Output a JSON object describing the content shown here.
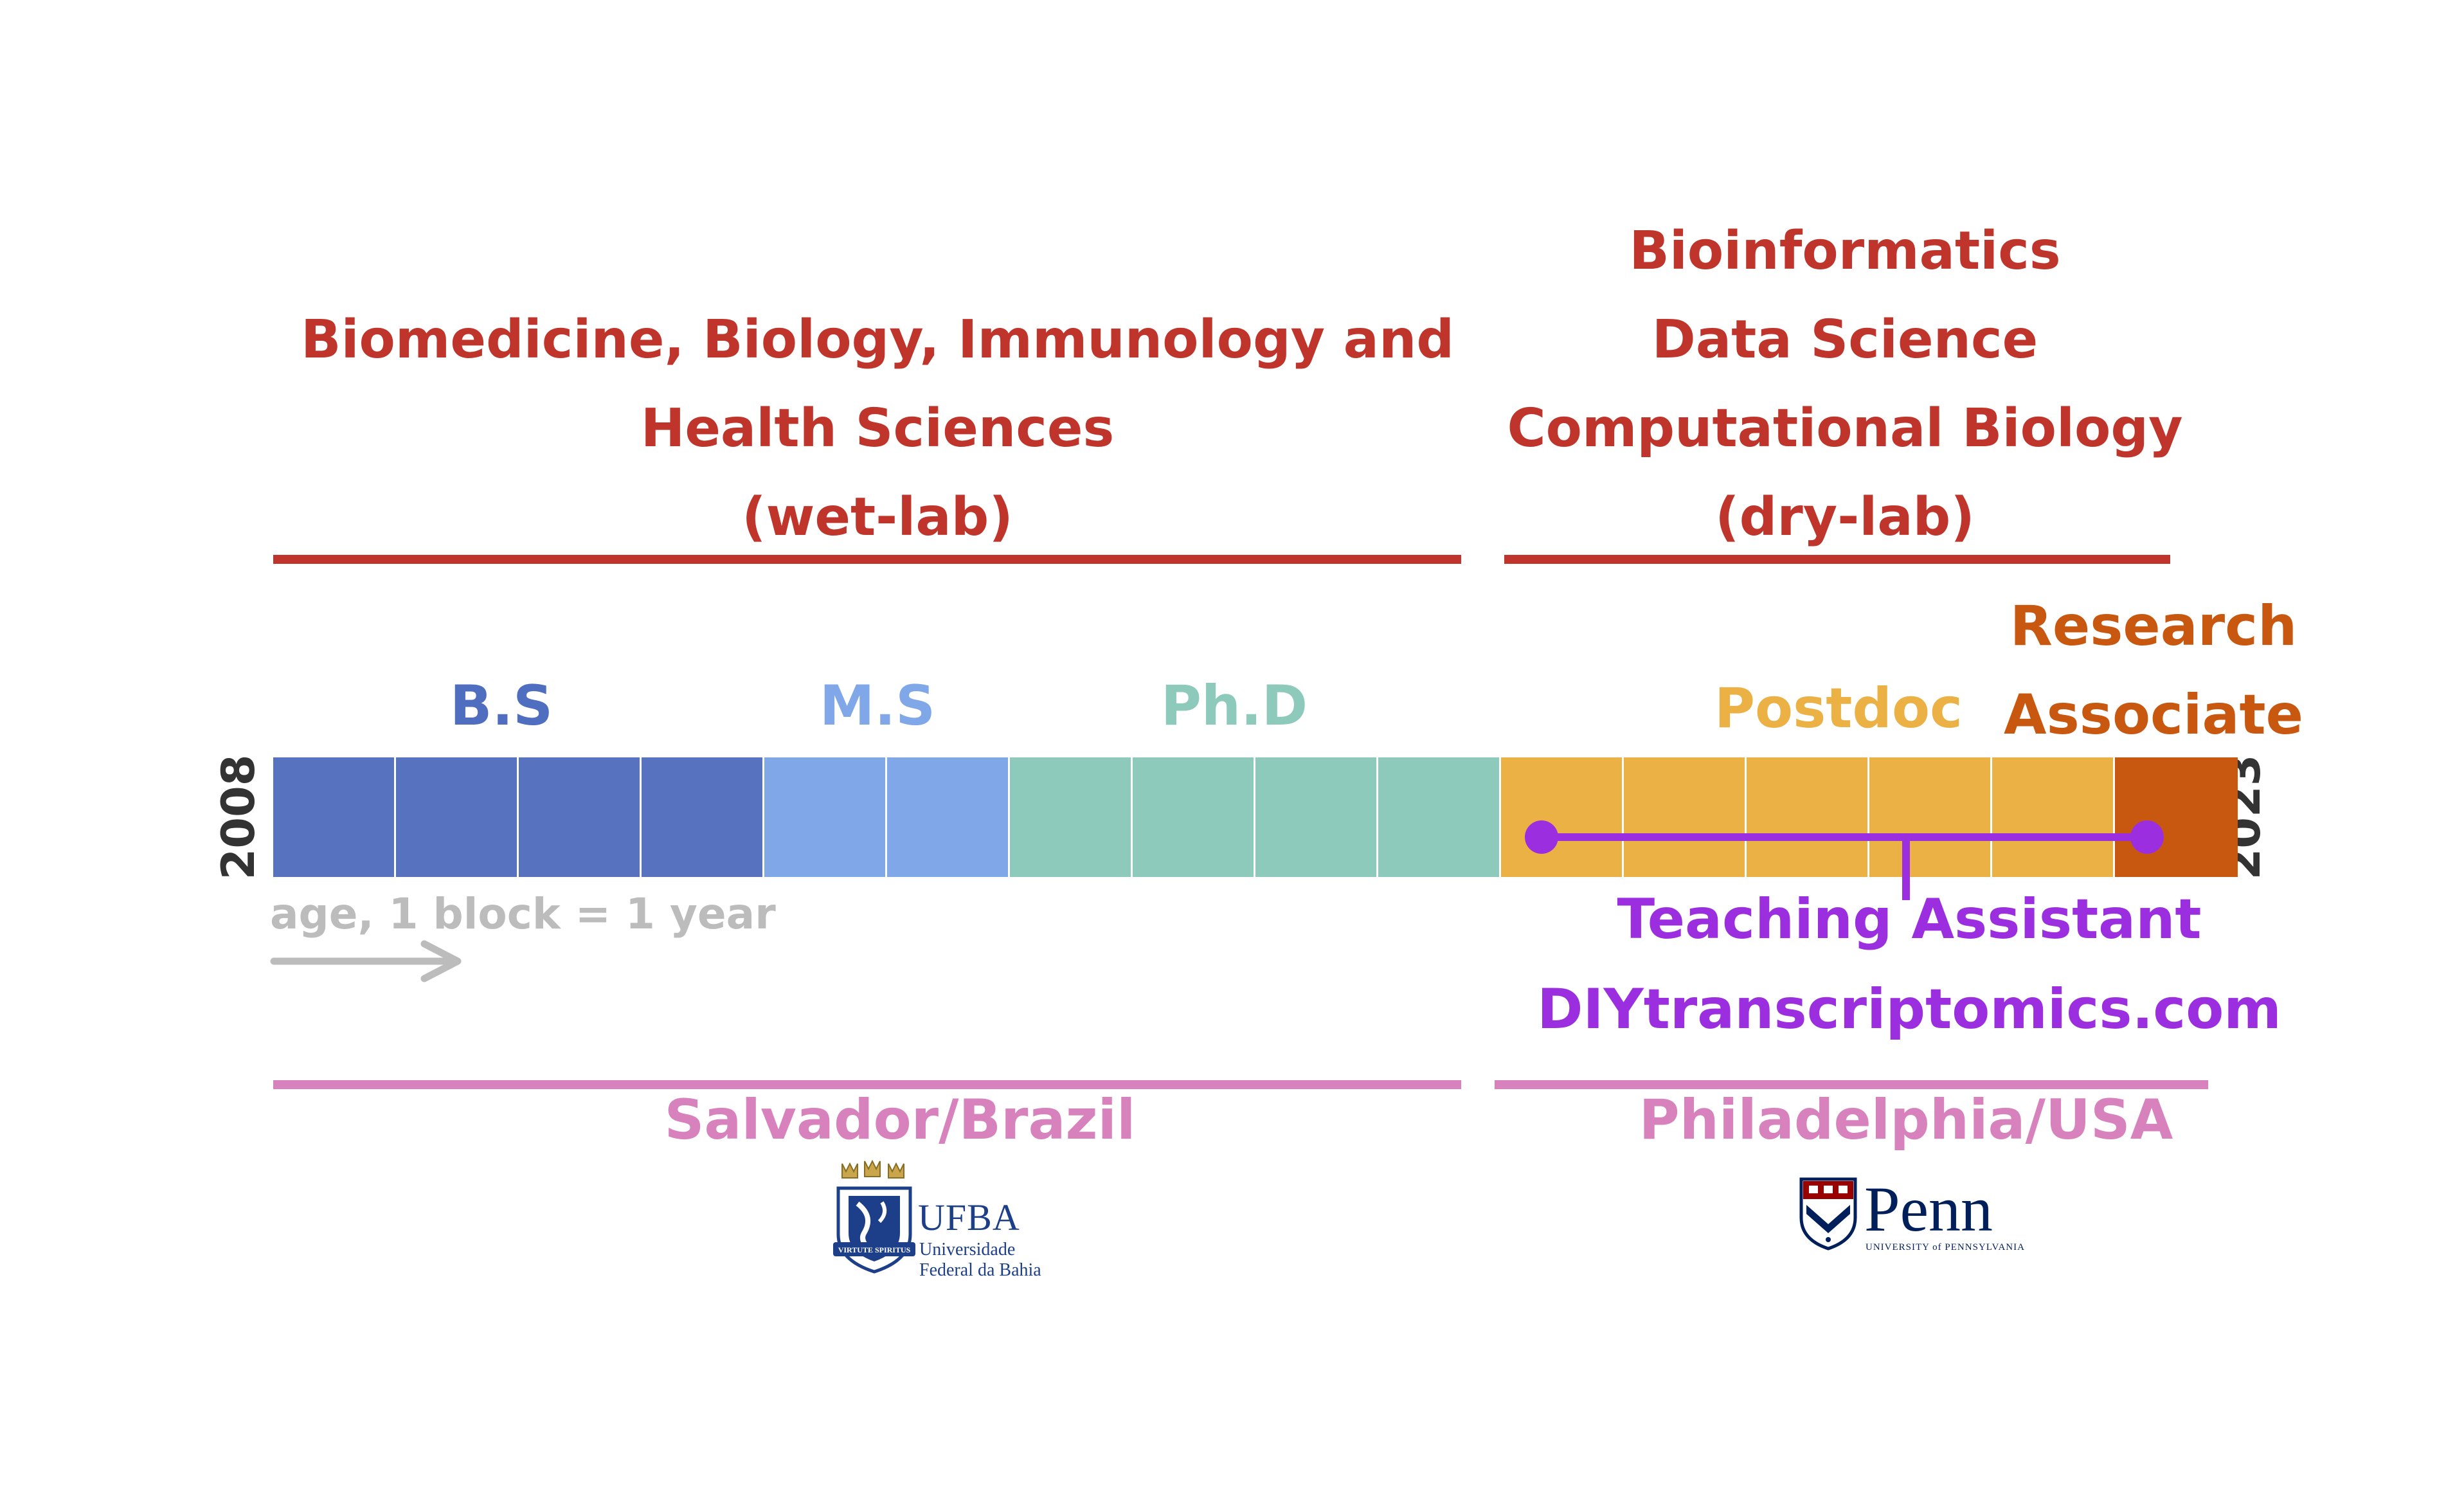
{
  "fields": {
    "wetlab": {
      "lines": [
        "Biomedicine, Biology, Immunology and",
        "Health Sciences",
        "(wet-lab)"
      ]
    },
    "drylab": {
      "lines": [
        "Bioinformatics",
        "Data Science",
        "Computational Biology",
        "(dry-lab)"
      ]
    }
  },
  "phases": {
    "bs": "B.S",
    "ms": "M.S",
    "phd": "Ph.D",
    "postdoc": "Postdoc",
    "research_associate_line1": "Research",
    "research_associate_line2": "Associate"
  },
  "timeline": {
    "start_year": "2008",
    "end_year": "2023",
    "legend": "age, 1 block = 1 year",
    "blocks": [
      {
        "phase": "B.S",
        "color": "#5773c0"
      },
      {
        "phase": "B.S",
        "color": "#5773c0"
      },
      {
        "phase": "B.S",
        "color": "#5773c0"
      },
      {
        "phase": "B.S",
        "color": "#5773c0"
      },
      {
        "phase": "M.S",
        "color": "#80a7e8"
      },
      {
        "phase": "M.S",
        "color": "#80a7e8"
      },
      {
        "phase": "Ph.D",
        "color": "#8ecabb"
      },
      {
        "phase": "Ph.D",
        "color": "#8ecabb"
      },
      {
        "phase": "Ph.D",
        "color": "#8ecabb"
      },
      {
        "phase": "Ph.D",
        "color": "#8ecabb"
      },
      {
        "phase": "Postdoc",
        "color": "#ebb144"
      },
      {
        "phase": "Postdoc",
        "color": "#ebb144"
      },
      {
        "phase": "Postdoc",
        "color": "#ebb144"
      },
      {
        "phase": "Postdoc",
        "color": "#ebb144"
      },
      {
        "phase": "Postdoc",
        "color": "#ebb144"
      },
      {
        "phase": "Research Associate",
        "color": "#c8580f"
      }
    ]
  },
  "teaching": {
    "line1": "Teaching Assistant",
    "line2": "DIYtranscriptomics.com"
  },
  "locations": {
    "brazil": "Salvador/Brazil",
    "usa": "Philadelphia/USA"
  },
  "logos": {
    "ufba": {
      "name": "UFBA",
      "line1": "Universidade",
      "line2": "Federal da Bahia",
      "motto": "VIRTUTE SPIRITUS"
    },
    "penn": {
      "name": "Penn",
      "subtitle": "UNIVERSITY of PENNSYLVANIA"
    }
  },
  "colors": {
    "field": "#c0352b",
    "bs": "#4f6ec0",
    "ms": "#80a7e8",
    "phd": "#8ecabb",
    "postdoc": "#ebb144",
    "research_associate": "#c8580f",
    "teaching": "#9b2fe0",
    "location": "#d882bd",
    "legend": "#bcbcbc"
  }
}
